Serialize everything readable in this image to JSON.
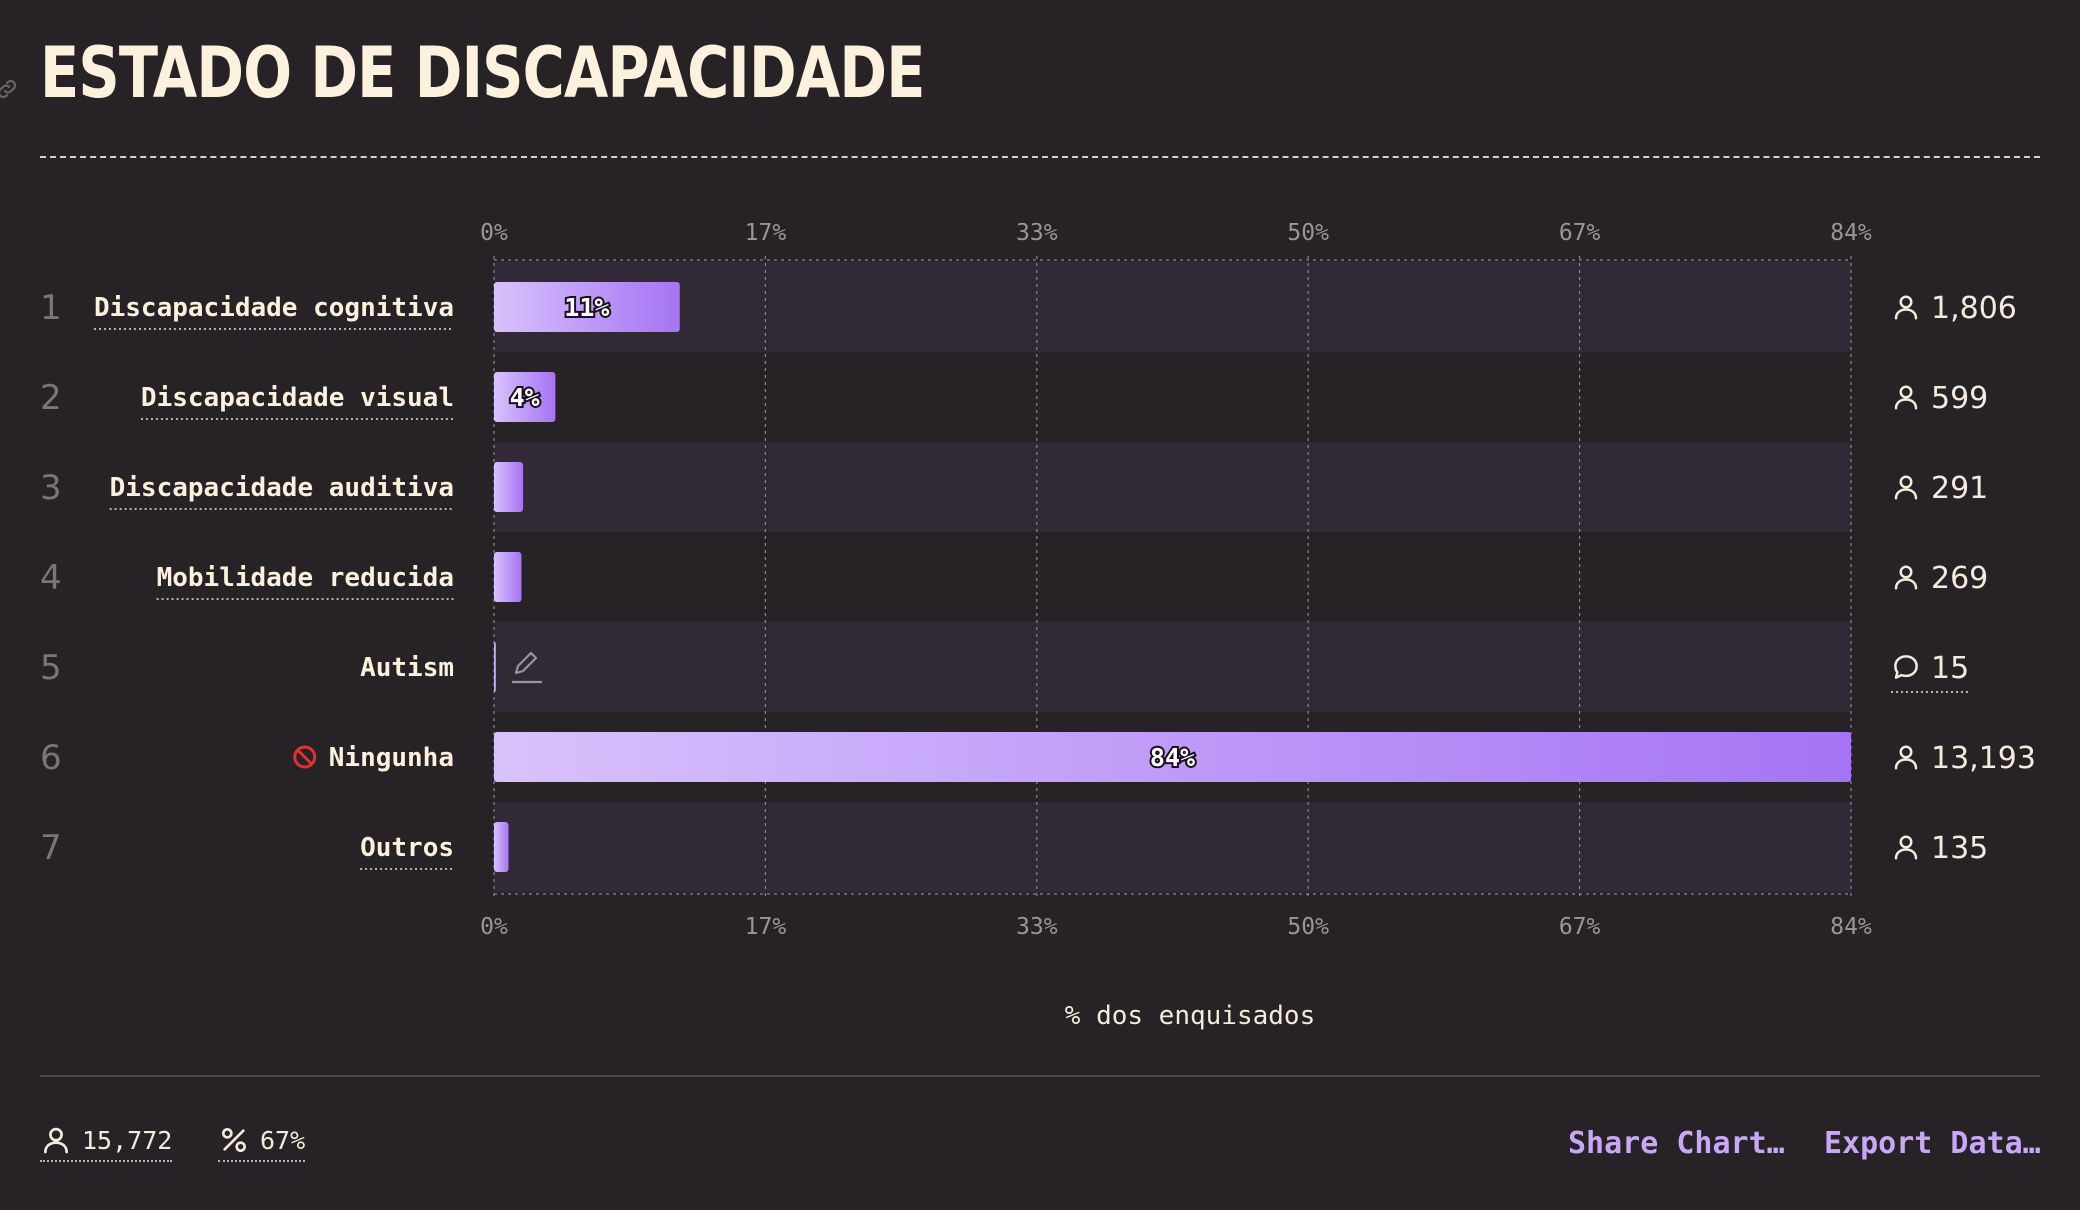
{
  "title": "ESTADO DE DISCAPACIDADE",
  "chart_data": {
    "type": "bar",
    "orientation": "horizontal",
    "xlabel": "% dos enquisados",
    "xlim": [
      0,
      84
    ],
    "ticks": [
      "0%",
      "17%",
      "33%",
      "50%",
      "67%",
      "84%"
    ],
    "categories": [
      "Discapacidade cognitiva",
      "Discapacidade visual",
      "Discapacidade auditiva",
      "Mobilidade reducida",
      "Autism",
      "Ningunha",
      "Outros"
    ],
    "values": [
      11.5,
      3.8,
      1.8,
      1.7,
      0.1,
      84,
      0.9
    ],
    "value_labels": [
      "11%",
      "4%",
      "",
      "",
      "",
      "84%",
      ""
    ],
    "counts": [
      "1,806",
      "599",
      "291",
      "269",
      "15",
      "13,193",
      "135"
    ],
    "count_icons": [
      "person-icon",
      "person-icon",
      "person-icon",
      "person-icon",
      "comment-icon",
      "person-icon",
      "person-icon"
    ],
    "ranks": [
      "1",
      "2",
      "3",
      "4",
      "5",
      "6",
      "7"
    ],
    "grid": true,
    "colors": {
      "bar_start": "#d8c2fc",
      "bar_end": "#a574f4",
      "band": "#312a36"
    }
  },
  "footer": {
    "respondents": "15,772",
    "percent": "67%",
    "share_label": "Share Chart…",
    "export_label": "Export Data…"
  }
}
